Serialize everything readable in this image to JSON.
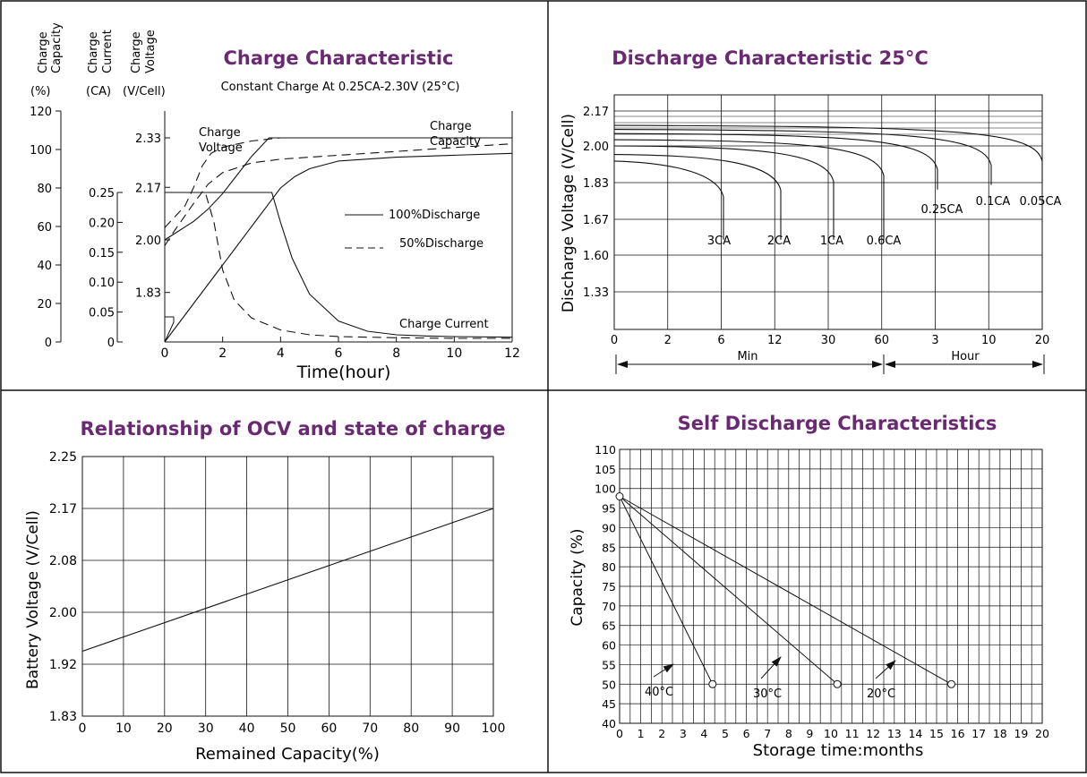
{
  "chart_data": [
    {
      "type": "line",
      "title": "Charge Characteristic",
      "subtitle": "Constant Charge At 0.25CA-2.30V (25°C)",
      "axis_headers": {
        "capacity": [
          "Charge",
          "Capacity",
          "(%)"
        ],
        "current": [
          "Charge",
          "Current",
          "(CA)"
        ],
        "voltage": [
          "Charge",
          "Voltage",
          "(V/Cell)"
        ]
      },
      "capacity_ticks": [
        "0",
        "20",
        "40",
        "60",
        "80",
        "100",
        "120"
      ],
      "current_ticks": [
        "0",
        "0.05",
        "0.10",
        "0.15",
        "0.20",
        "0.25"
      ],
      "voltage_ticks": [
        "1.83",
        "2.00",
        "2.17",
        "2.33"
      ],
      "x_ticks": [
        "0",
        "2",
        "4",
        "6",
        "8",
        "10",
        "12"
      ],
      "xlabel": "Time(hour)",
      "xlim": [
        0,
        12
      ],
      "grid": false,
      "legend_items": [
        {
          "label": "100%Discharge",
          "style": "solid"
        },
        {
          "label": "50%Discharge",
          "style": "dashed"
        }
      ],
      "annotations": {
        "voltage": [
          "Charge",
          "Voltage"
        ],
        "capacity": [
          "Charge",
          "Capacity"
        ],
        "current": "Charge Current"
      },
      "series": [
        {
          "quantity": "charge voltage",
          "discharge": "100%",
          "style": "solid",
          "unit": "V/Cell",
          "x": [
            0,
            0.5,
            1,
            1.5,
            2,
            2.5,
            3,
            3.6,
            12
          ],
          "y": [
            2.0,
            2.03,
            2.06,
            2.1,
            2.15,
            2.21,
            2.27,
            2.33,
            2.33
          ]
        },
        {
          "quantity": "charge voltage",
          "discharge": "50%",
          "style": "dashed",
          "unit": "V/Cell",
          "x": [
            0,
            0.3,
            0.7,
            1,
            1.3,
            1.6,
            2,
            2.5,
            3,
            4,
            6,
            8,
            10,
            12
          ],
          "y": [
            2.04,
            2.07,
            2.11,
            2.17,
            2.24,
            2.28,
            2.3,
            2.31,
            2.32,
            2.33,
            2.33,
            2.33,
            2.33,
            2.33
          ]
        },
        {
          "quantity": "charge current",
          "discharge": "100%",
          "style": "solid",
          "unit": "CA",
          "x": [
            0,
            3.7,
            4,
            4.4,
            5,
            6,
            7,
            8,
            9,
            10,
            12
          ],
          "y": [
            0.25,
            0.25,
            0.2,
            0.14,
            0.08,
            0.035,
            0.018,
            0.012,
            0.01,
            0.009,
            0.008
          ]
        },
        {
          "quantity": "charge current",
          "discharge": "50%",
          "style": "dashed",
          "unit": "CA",
          "x": [
            0,
            1.4,
            1.7,
            2,
            2.4,
            3,
            4,
            5,
            6,
            8,
            10,
            12
          ],
          "y": [
            0.25,
            0.25,
            0.2,
            0.12,
            0.07,
            0.04,
            0.02,
            0.012,
            0.009,
            0.007,
            0.006,
            0.006
          ]
        },
        {
          "quantity": "charge capacity",
          "discharge": "100%",
          "style": "solid",
          "unit": "%",
          "x": [
            0,
            1,
            2,
            3,
            3.7,
            4,
            4.5,
            5,
            6,
            8,
            10,
            12
          ],
          "y": [
            0,
            20,
            40,
            60,
            74,
            80,
            86,
            90,
            94,
            96,
            97,
            98
          ]
        },
        {
          "quantity": "charge capacity",
          "discharge": "50%",
          "style": "dashed",
          "unit": "%",
          "x": [
            0,
            0.3,
            1,
            1.5,
            2,
            3,
            4,
            6,
            8,
            10,
            12
          ],
          "y": [
            50,
            57,
            72,
            82,
            88,
            93,
            95,
            97,
            99,
            101,
            103
          ]
        }
      ]
    },
    {
      "type": "line",
      "title": "Discharge Characteristic 25°C",
      "ylabel": "Discharge Voltage (V/Cell)",
      "y_ticks": [
        "1.33",
        "1.60",
        "1.67",
        "1.83",
        "2.00",
        "2.17"
      ],
      "x_ticks": [
        "0",
        "2",
        "6",
        "12",
        "30",
        "60",
        "3",
        "10",
        "20"
      ],
      "x_sections": [
        "Min",
        "Hour"
      ],
      "grid": true,
      "series": [
        {
          "name": "3CA",
          "end_x": "6 Min",
          "start_v": 1.93,
          "end_v": 1.63
        },
        {
          "name": "2CA",
          "end_x": "12 Min",
          "start_v": 1.96,
          "end_v": 1.63
        },
        {
          "name": "1CA",
          "end_x": "30 Min",
          "start_v": 2.0,
          "end_v": 1.63
        },
        {
          "name": "0.6CA",
          "end_x": "60 Min",
          "start_v": 2.03,
          "end_v": 1.63
        },
        {
          "name": "0.25CA",
          "end_x": "3 Hour",
          "start_v": 2.06,
          "end_v": 1.8
        },
        {
          "name": "0.1CA",
          "end_x": "10 Hour",
          "start_v": 2.08,
          "end_v": 1.82
        },
        {
          "name": "0.05CA",
          "end_x": "20 Hour",
          "start_v": 2.1,
          "end_v": 1.83
        }
      ]
    },
    {
      "type": "line",
      "title": "Relationship of OCV and state of charge",
      "xlabel": "Remained Capacity(%)",
      "ylabel": "Battery Voltage (V/Cell)",
      "x_ticks": [
        "0",
        "10",
        "20",
        "30",
        "40",
        "50",
        "60",
        "70",
        "80",
        "90",
        "100"
      ],
      "y_ticks": [
        "1.83",
        "1.92",
        "2.00",
        "2.08",
        "2.17",
        "2.25"
      ],
      "xlim": [
        0,
        100
      ],
      "grid": true,
      "series": [
        {
          "x": [
            0,
            100
          ],
          "y": [
            1.94,
            2.17
          ]
        }
      ]
    },
    {
      "type": "line",
      "title": "Self Discharge Characteristics",
      "xlabel": "Storage time:months",
      "ylabel": "Capacity (%)",
      "x_ticks": [
        "0",
        "1",
        "2",
        "3",
        "4",
        "5",
        "6",
        "7",
        "8",
        "9",
        "10",
        "11",
        "12",
        "13",
        "14",
        "15",
        "16",
        "17",
        "18",
        "19",
        "20"
      ],
      "y_ticks": [
        "40",
        "45",
        "50",
        "55",
        "60",
        "65",
        "70",
        "75",
        "80",
        "85",
        "90",
        "95",
        "100",
        "105",
        "110"
      ],
      "xlim": [
        0,
        20
      ],
      "ylim": [
        40,
        110
      ],
      "grid": true,
      "series": [
        {
          "name": "40°C",
          "x": [
            0,
            4.4
          ],
          "y": [
            98,
            50
          ]
        },
        {
          "name": "30°C",
          "x": [
            0,
            10.3
          ],
          "y": [
            98,
            50
          ]
        },
        {
          "name": "20°C",
          "x": [
            0,
            15.7
          ],
          "y": [
            98,
            50
          ]
        }
      ]
    }
  ]
}
